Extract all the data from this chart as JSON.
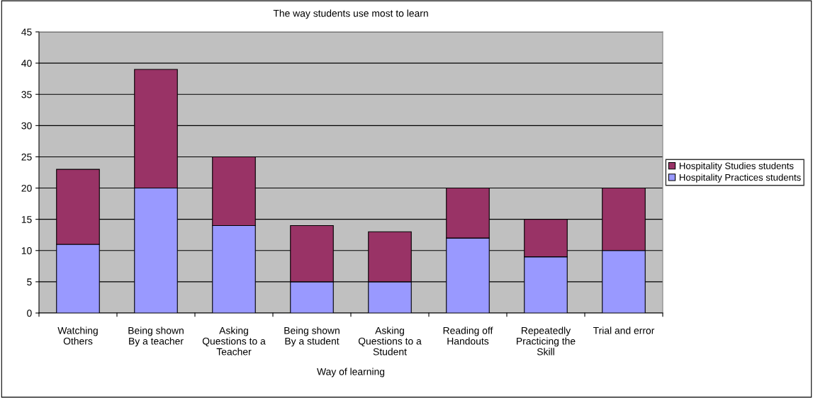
{
  "chart_data": {
    "type": "bar",
    "title": "The way students use most to learn",
    "xlabel": "Way of learning",
    "categories": [
      "Watching\nOthers",
      "Being shown\nBy a teacher",
      "Asking\nQuestions to a\nTeacher",
      "Being shown\nBy a student",
      "Asking\nQuestions to a\nStudent",
      "Reading off\nHandouts",
      "Repeatedly\nPracticing the\nSkill",
      "Trial and error"
    ],
    "stacked": true,
    "series": [
      {
        "name": "Hospitality Practices students",
        "color": "#9999ff",
        "values": [
          11,
          20,
          14,
          5,
          5,
          12,
          9,
          10
        ]
      },
      {
        "name": "Hospitality Studies students",
        "color": "#993366",
        "values": [
          12,
          19,
          11,
          9,
          8,
          8,
          6,
          10
        ]
      }
    ],
    "ylim": [
      0,
      45
    ],
    "yticks": [
      0,
      5,
      10,
      15,
      20,
      25,
      30,
      35,
      40,
      45
    ],
    "grid": "y",
    "legend": "right"
  }
}
